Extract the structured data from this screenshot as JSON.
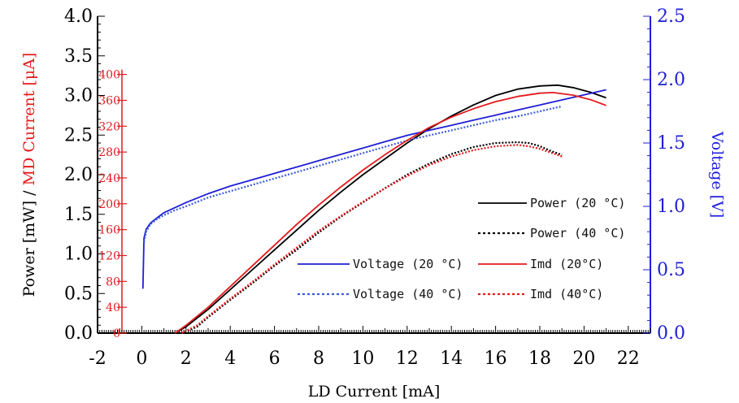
{
  "chart_data": {
    "type": "line",
    "xlabel": "LD Current [mA]",
    "ylabel_left_parts": [
      "Power [mW] / ",
      "MD Current [μA]"
    ],
    "ylabel_right": "Voltage [V]",
    "xlim": [
      -2,
      23
    ],
    "ylim_left": [
      0,
      4
    ],
    "ylim_md": [
      0,
      490
    ],
    "ylim_right": [
      0,
      2.5
    ],
    "x_ticks": [
      -2,
      0,
      2,
      4,
      6,
      8,
      10,
      12,
      14,
      16,
      18,
      20,
      22
    ],
    "y_left_ticks": [
      "0.0",
      "0.5",
      "1.0",
      "1.5",
      "2.0",
      "2.5",
      "3.0",
      "3.5",
      "4.0"
    ],
    "y_md_ticks": [
      0,
      40,
      80,
      120,
      160,
      200,
      240,
      280,
      320,
      360,
      400
    ],
    "y_right_ticks": [
      "0.0",
      "0.5",
      "1.0",
      "1.5",
      "2.0",
      "2.5"
    ],
    "colors": {
      "black": "#000000",
      "red": "#e41a1c",
      "blue": "#1f1fd6",
      "light_blue": "#3b5bdb"
    },
    "series": [
      {
        "name": "Power (20 °C)",
        "axis": "left",
        "color": "#000000",
        "style": "solid",
        "x": [
          1.5,
          2,
          3,
          4,
          5,
          6,
          7,
          8,
          9,
          10,
          11,
          12,
          13,
          14,
          15,
          16,
          17,
          18,
          18.8,
          19.5,
          20.3,
          21
        ],
        "y": [
          0.0,
          0.08,
          0.3,
          0.55,
          0.8,
          1.05,
          1.3,
          1.55,
          1.78,
          2.0,
          2.2,
          2.4,
          2.58,
          2.74,
          2.88,
          3.0,
          3.08,
          3.12,
          3.13,
          3.1,
          3.04,
          2.97
        ]
      },
      {
        "name": "Power (40 °C)",
        "axis": "left",
        "color": "#000000",
        "style": "dotted",
        "x": [
          1.8,
          2.5,
          3,
          4,
          5,
          6,
          7,
          8,
          9,
          10,
          11,
          12,
          13,
          14,
          15,
          16,
          17,
          17.5,
          18,
          18.5,
          19
        ],
        "y": [
          0.0,
          0.08,
          0.2,
          0.42,
          0.63,
          0.85,
          1.05,
          1.27,
          1.47,
          1.65,
          1.83,
          2.0,
          2.14,
          2.26,
          2.35,
          2.4,
          2.41,
          2.4,
          2.36,
          2.3,
          2.25
        ]
      },
      {
        "name": "Voltage (20 °C)",
        "axis": "right",
        "color": "#1f1fd6",
        "style": "solid",
        "x": [
          0.05,
          0.1,
          0.2,
          0.4,
          0.7,
          1,
          1.5,
          2,
          3,
          4,
          5,
          6,
          7,
          8,
          9,
          10,
          11,
          12,
          13,
          14,
          15,
          16,
          17,
          18,
          19,
          20,
          21
        ],
        "y": [
          0.35,
          0.75,
          0.82,
          0.87,
          0.91,
          0.95,
          0.99,
          1.03,
          1.1,
          1.16,
          1.21,
          1.26,
          1.31,
          1.36,
          1.41,
          1.46,
          1.51,
          1.56,
          1.6,
          1.64,
          1.68,
          1.72,
          1.76,
          1.8,
          1.84,
          1.88,
          1.92
        ]
      },
      {
        "name": "Voltage (40 °C)",
        "axis": "right",
        "color": "#3b5bdb",
        "style": "dotted",
        "x": [
          0.1,
          0.2,
          0.4,
          0.7,
          1,
          1.5,
          2,
          3,
          4,
          5,
          6,
          7,
          8,
          9,
          10,
          11,
          12,
          13,
          14,
          15,
          16,
          17,
          18,
          19
        ],
        "y": [
          0.72,
          0.8,
          0.86,
          0.9,
          0.93,
          0.97,
          1.0,
          1.07,
          1.12,
          1.17,
          1.22,
          1.27,
          1.32,
          1.37,
          1.42,
          1.47,
          1.52,
          1.56,
          1.6,
          1.64,
          1.68,
          1.71,
          1.75,
          1.79
        ]
      },
      {
        "name": "Imd (20°C)",
        "axis": "md",
        "color": "#e41a1c",
        "style": "solid",
        "x": [
          1.5,
          2,
          3,
          4,
          5,
          6,
          7,
          8,
          9,
          10,
          11,
          12,
          13,
          14,
          15,
          16,
          17,
          18,
          18.6,
          19.5,
          20.3,
          21
        ],
        "y": [
          0,
          12,
          40,
          72,
          104,
          136,
          168,
          198,
          226,
          252,
          276,
          298,
          318,
          334,
          347,
          358,
          366,
          371,
          372,
          368,
          361,
          352
        ]
      },
      {
        "name": "Imd (40°C)",
        "axis": "md",
        "color": "#e41a1c",
        "style": "dotted",
        "x": [
          1.8,
          2.5,
          3,
          4,
          5,
          6,
          7,
          8,
          9,
          10,
          11,
          12,
          13,
          14,
          15,
          16,
          17,
          17.5,
          18,
          18.5,
          19
        ],
        "y": [
          0,
          12,
          26,
          53,
          79,
          106,
          132,
          158,
          181,
          203,
          224,
          243,
          260,
          273,
          283,
          289,
          291,
          289,
          285,
          279,
          273
        ]
      }
    ],
    "legend": {
      "placement": "bottom-right",
      "entries": [
        {
          "label": "Power (20 °C)",
          "series": 0
        },
        {
          "label": "Power (40 °C)",
          "series": 1
        },
        {
          "label": "Voltage (20 °C)",
          "series": 2
        },
        {
          "label": "Imd (20°C)",
          "series": 4
        },
        {
          "label": "Voltage (40 °C)",
          "series": 3
        },
        {
          "label": "Imd (40°C)",
          "series": 5
        }
      ]
    }
  }
}
